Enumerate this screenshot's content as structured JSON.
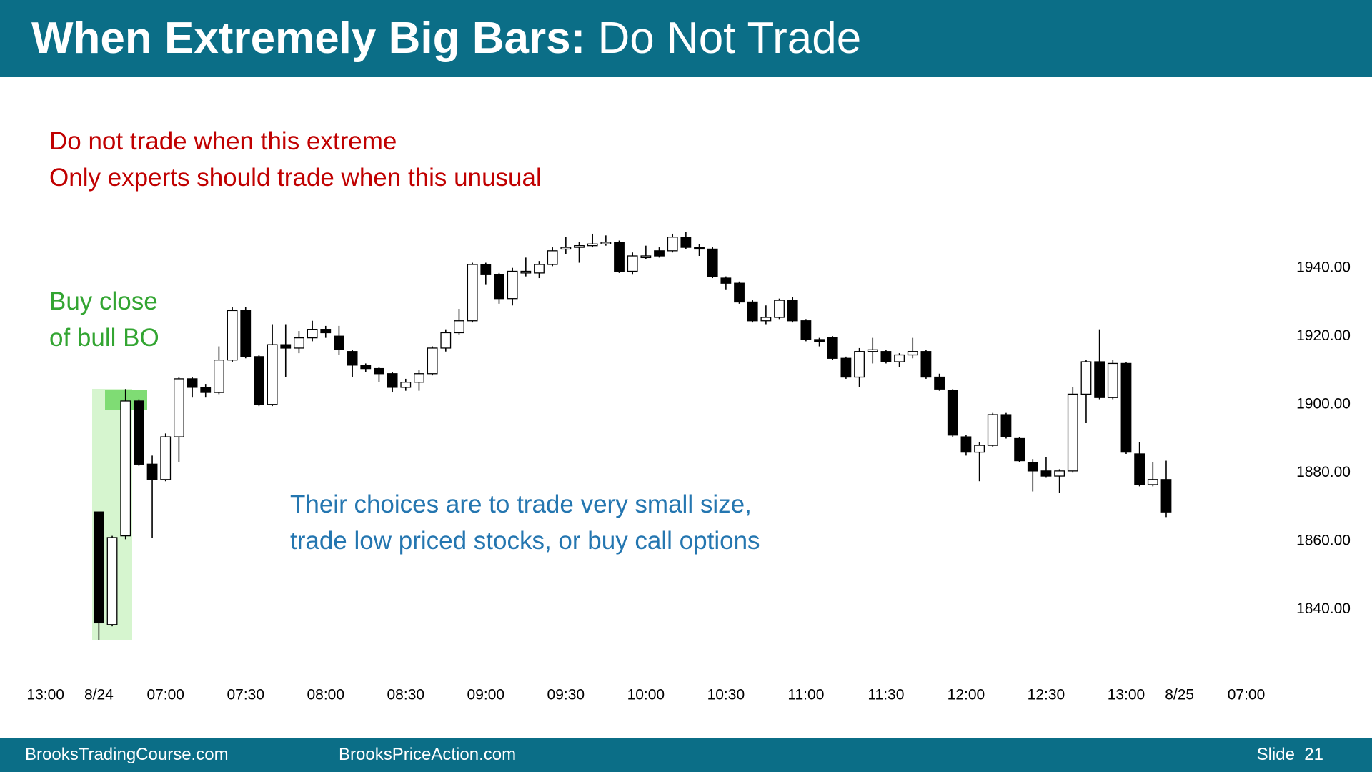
{
  "header": {
    "title_bold": "When Extremely Big Bars:",
    "title_rest": " Do Not Trade"
  },
  "notes": {
    "red": [
      "Do not trade when this extreme",
      "Only experts should trade when this unusual"
    ],
    "green": [
      "Buy close",
      "of bull BO"
    ],
    "blue": [
      "Their choices are to trade very small size,",
      "trade low priced stocks, or buy call options"
    ]
  },
  "footer": {
    "left": "BrooksTradingCourse.com",
    "middle": "BrooksPriceAction.com",
    "right": "Slide  21"
  },
  "chart_data": {
    "type": "candlestick",
    "up_color": "#ffffff",
    "down_color": "#000000",
    "categories": [
      "13:00",
      null,
      null,
      null,
      "8/24",
      null,
      null,
      null,
      null,
      "07:00",
      null,
      null,
      null,
      null,
      null,
      "07:30",
      null,
      null,
      null,
      null,
      null,
      "08:00",
      null,
      null,
      null,
      null,
      null,
      "08:30",
      null,
      null,
      null,
      null,
      null,
      "09:00",
      null,
      null,
      null,
      null,
      null,
      "09:30",
      null,
      null,
      null,
      null,
      null,
      "10:00",
      null,
      null,
      null,
      null,
      null,
      "10:30",
      null,
      null,
      null,
      null,
      null,
      "11:00",
      null,
      null,
      null,
      null,
      null,
      "11:30",
      null,
      null,
      null,
      null,
      null,
      "12:00",
      null,
      null,
      null,
      null,
      null,
      "12:30",
      null,
      null,
      null,
      null,
      null,
      "13:00",
      null,
      null,
      null,
      "8/25",
      null,
      null,
      null,
      null,
      "07:00"
    ],
    "open": [
      null,
      null,
      null,
      null,
      1868.5,
      1835.5,
      1861.5,
      1901,
      1882.5,
      1878,
      1890.5,
      1907.5,
      1905,
      1903.5,
      1913,
      1927.5,
      1914,
      1900,
      1917.5,
      1916.5,
      1919.5,
      1922,
      1920,
      1915.5,
      1911.5,
      1910.5,
      1909,
      1905,
      1906.5,
      1909,
      1916.5,
      1921,
      1924.5,
      1941,
      1938,
      1931,
      1938.5,
      1938.5,
      1941,
      1945.5,
      1946,
      1946.5,
      1947,
      1947.5,
      1939,
      1943,
      1945,
      1945,
      1949,
      1946,
      1945.5,
      1937,
      1935.5,
      1930,
      1924.5,
      1925.5,
      1930.5,
      1924.5,
      1919,
      1919.5,
      1913.5,
      1908,
      1915.5,
      1915.5,
      1912.5,
      1914.5,
      1915.5,
      1908,
      1904,
      1890.5,
      1886,
      1888,
      1897,
      1890,
      1883,
      1880.5,
      1879,
      1880.5,
      1903,
      1912.5,
      1902,
      1912,
      1885.5,
      1876.5,
      1878,
      null,
      null,
      null,
      null,
      null,
      null
    ],
    "high": [
      null,
      null,
      null,
      null,
      1868.5,
      1861.5,
      1904.5,
      1901.5,
      1885,
      1891.5,
      1908,
      1908,
      1906,
      1917,
      1928.5,
      1928.5,
      1914.5,
      1923.5,
      1923.5,
      1921.5,
      1924.5,
      1923,
      1923,
      1916,
      1912,
      1911,
      1909.5,
      1907.5,
      1910,
      1917,
      1922,
      1928,
      1941.5,
      1941.5,
      1938.5,
      1940,
      1943,
      1942,
      1946,
      1949,
      1947.5,
      1950,
      1949.5,
      1948,
      1944.5,
      1946.5,
      1946,
      1950,
      1950.5,
      1947,
      1946,
      1937.5,
      1936,
      1930.5,
      1929,
      1931,
      1931.5,
      1925,
      1919.5,
      1920,
      1914,
      1916.5,
      1919.5,
      1916,
      1915,
      1919.5,
      1916,
      1909,
      1904.5,
      1891,
      1889,
      1897.5,
      1897.5,
      1890.5,
      1884,
      1884.5,
      1881,
      1905,
      1913,
      1922,
      1913,
      1912.5,
      1889,
      1883,
      1883.5,
      null,
      null,
      null,
      null,
      null,
      null
    ],
    "low": [
      null,
      null,
      null,
      null,
      1831,
      1835,
      1860.5,
      1882,
      1861,
      1877.5,
      1883,
      1902,
      1902,
      1903,
      1912.5,
      1913.5,
      1899.5,
      1899.5,
      1908,
      1915,
      1918.5,
      1919.5,
      1914.5,
      1908,
      1909.5,
      1906.5,
      1903.5,
      1904,
      1904,
      1908.5,
      1915.5,
      1920.5,
      1924,
      1935,
      1929.5,
      1929,
      1937.5,
      1937,
      1940.5,
      1944,
      1941.5,
      1946,
      1946.5,
      1938.5,
      1938,
      1942.5,
      1943,
      1944.5,
      1945.5,
      1943.5,
      1937,
      1933.5,
      1929.5,
      1924,
      1923.5,
      1925,
      1924,
      1918.5,
      1917,
      1913,
      1907.5,
      1905,
      1912,
      1912,
      1911,
      1913.5,
      1907.5,
      1904,
      1890.5,
      1885,
      1877.5,
      1887.5,
      1890,
      1883,
      1874.5,
      1878.5,
      1874,
      1880,
      1894.5,
      1901.5,
      1901.5,
      1885.5,
      1876,
      1876,
      1867,
      null,
      null,
      null,
      null,
      null,
      null
    ],
    "close": [
      null,
      null,
      null,
      null,
      1836,
      1861,
      1901,
      1882.5,
      1878,
      1890.5,
      1907.5,
      1905,
      1903.5,
      1913,
      1927.5,
      1914,
      1900,
      1917.5,
      1916.5,
      1919.5,
      1922,
      1921,
      1916,
      1911.5,
      1910.5,
      1909,
      1905,
      1906.5,
      1909,
      1916.5,
      1921,
      1924.5,
      1941,
      1938,
      1931,
      1939,
      1939,
      1941,
      1945,
      1946,
      1946.5,
      1947,
      1947.5,
      1939,
      1943.5,
      1943.5,
      1943.5,
      1949,
      1946,
      1945.5,
      1937.5,
      1935.5,
      1930,
      1924.5,
      1925.5,
      1930.5,
      1924.5,
      1919,
      1918.5,
      1913.5,
      1908,
      1915.5,
      1916,
      1912.5,
      1914.5,
      1915.5,
      1908,
      1904.5,
      1891,
      1886,
      1888,
      1897,
      1890.5,
      1883.5,
      1880.5,
      1879,
      1880.5,
      1903,
      1912.5,
      1902,
      1912,
      1886,
      1876.5,
      1878,
      1868.5,
      null,
      null,
      null,
      null,
      null,
      null
    ],
    "ylim": [
      1820,
      1960
    ],
    "yticks": [
      {
        "value": 1840,
        "label": "1840.00"
      },
      {
        "value": 1860,
        "label": "1860.00"
      },
      {
        "value": 1880,
        "label": "1880.00"
      },
      {
        "value": 1900,
        "label": "1900.00"
      },
      {
        "value": 1920,
        "label": "1920.00"
      },
      {
        "value": 1940,
        "label": "1940.00"
      }
    ],
    "grid": false
  }
}
